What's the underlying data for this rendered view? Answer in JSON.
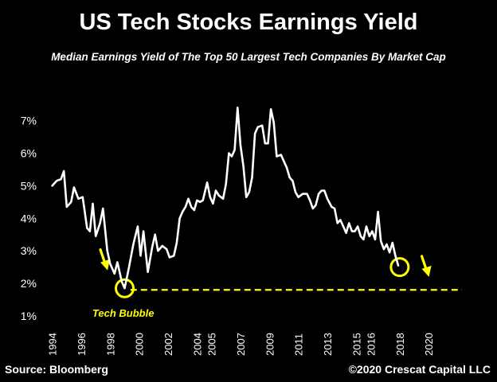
{
  "header": {
    "title": "US Tech Stocks Earnings Yield",
    "subtitle": "Median Earnings Yield of The Top 50 Largest Tech Companies By Market Cap"
  },
  "footer": {
    "source": "Source: Bloomberg",
    "copyright": "©2020 Crescat Capital LLC"
  },
  "colors": {
    "background": "#000000",
    "line": "#ffffff",
    "highlight": "#ffff00",
    "text": "#ffffff"
  },
  "chart_data": {
    "type": "line",
    "title": "US Tech Stocks Earnings Yield",
    "subtitle": "Median Earnings Yield of The Top 50 Largest Tech Companies By Market Cap",
    "xlabel": "",
    "ylabel": "",
    "ylim": [
      1,
      7.6
    ],
    "xlim": [
      1993.8,
      2023.4
    ],
    "y_ticks": [
      1,
      2,
      3,
      4,
      5,
      6,
      7
    ],
    "y_tick_labels": [
      "1%",
      "2%",
      "3%",
      "4%",
      "5%",
      "6%",
      "7%"
    ],
    "x_ticks": [
      1994,
      1996,
      1998,
      2000,
      2002,
      2004,
      2005,
      2007,
      2009,
      2011,
      2013,
      2015,
      2016,
      2018,
      2020
    ],
    "x_tick_labels": [
      "1994",
      "1996",
      "1998",
      "2000",
      "2002",
      "2004",
      "2005",
      "2007",
      "2009",
      "2011",
      "2013",
      "2015",
      "2016",
      "2018",
      "2020"
    ],
    "grid": false,
    "legend": "none",
    "series": [
      {
        "values_format": "[year, yield_percent]",
        "points": [
          [
            1994.0,
            5.0
          ],
          [
            1994.3,
            5.15
          ],
          [
            1994.6,
            5.2
          ],
          [
            1994.8,
            5.45
          ],
          [
            1995.0,
            4.35
          ],
          [
            1995.3,
            4.5
          ],
          [
            1995.5,
            4.95
          ],
          [
            1995.8,
            4.6
          ],
          [
            1996.1,
            4.65
          ],
          [
            1996.4,
            3.7
          ],
          [
            1996.6,
            3.6
          ],
          [
            1996.8,
            4.45
          ],
          [
            1997.0,
            3.45
          ],
          [
            1997.3,
            3.85
          ],
          [
            1997.5,
            4.3
          ],
          [
            1997.8,
            3.0
          ],
          [
            1998.0,
            2.6
          ],
          [
            1998.3,
            2.3
          ],
          [
            1998.5,
            2.65
          ],
          [
            1998.8,
            2.05
          ],
          [
            1999.0,
            1.85
          ],
          [
            1999.3,
            2.5
          ],
          [
            1999.6,
            3.2
          ],
          [
            1999.9,
            3.75
          ],
          [
            2000.1,
            2.85
          ],
          [
            2000.3,
            3.6
          ],
          [
            2000.6,
            2.35
          ],
          [
            2000.9,
            3.1
          ],
          [
            2001.1,
            3.5
          ],
          [
            2001.3,
            3.0
          ],
          [
            2001.6,
            3.15
          ],
          [
            2001.9,
            3.05
          ],
          [
            2002.1,
            2.8
          ],
          [
            2002.4,
            2.85
          ],
          [
            2002.6,
            3.25
          ],
          [
            2002.8,
            4.0
          ],
          [
            2003.0,
            4.2
          ],
          [
            2003.2,
            4.35
          ],
          [
            2003.4,
            4.6
          ],
          [
            2003.6,
            4.35
          ],
          [
            2003.8,
            4.25
          ],
          [
            2004.0,
            4.55
          ],
          [
            2004.2,
            4.5
          ],
          [
            2004.4,
            4.55
          ],
          [
            2004.7,
            5.1
          ],
          [
            2004.9,
            4.65
          ],
          [
            2005.1,
            4.45
          ],
          [
            2005.3,
            4.85
          ],
          [
            2005.5,
            4.7
          ],
          [
            2005.8,
            4.6
          ],
          [
            2006.0,
            5.05
          ],
          [
            2006.2,
            6.0
          ],
          [
            2006.4,
            5.9
          ],
          [
            2006.6,
            6.1
          ],
          [
            2006.8,
            7.4
          ],
          [
            2007.0,
            6.25
          ],
          [
            2007.2,
            5.6
          ],
          [
            2007.4,
            4.65
          ],
          [
            2007.6,
            4.8
          ],
          [
            2007.8,
            5.25
          ],
          [
            2008.0,
            6.6
          ],
          [
            2008.2,
            6.8
          ],
          [
            2008.5,
            6.85
          ],
          [
            2008.7,
            6.3
          ],
          [
            2008.9,
            6.3
          ],
          [
            2009.1,
            7.35
          ],
          [
            2009.3,
            6.95
          ],
          [
            2009.5,
            5.9
          ],
          [
            2009.8,
            5.95
          ],
          [
            2010.0,
            5.75
          ],
          [
            2010.2,
            5.55
          ],
          [
            2010.4,
            5.25
          ],
          [
            2010.6,
            5.15
          ],
          [
            2010.8,
            4.8
          ],
          [
            2011.0,
            4.65
          ],
          [
            2011.3,
            4.75
          ],
          [
            2011.6,
            4.75
          ],
          [
            2011.8,
            4.55
          ],
          [
            2012.0,
            4.3
          ],
          [
            2012.2,
            4.4
          ],
          [
            2012.4,
            4.75
          ],
          [
            2012.6,
            4.85
          ],
          [
            2012.8,
            4.85
          ],
          [
            2013.0,
            4.6
          ],
          [
            2013.3,
            4.35
          ],
          [
            2013.5,
            4.3
          ],
          [
            2013.7,
            3.85
          ],
          [
            2013.9,
            3.95
          ],
          [
            2014.1,
            3.75
          ],
          [
            2014.3,
            3.55
          ],
          [
            2014.5,
            3.85
          ],
          [
            2014.7,
            3.6
          ],
          [
            2014.9,
            3.6
          ],
          [
            2015.1,
            3.75
          ],
          [
            2015.3,
            3.45
          ],
          [
            2015.5,
            3.35
          ],
          [
            2015.7,
            3.75
          ],
          [
            2015.9,
            3.45
          ],
          [
            2016.1,
            3.6
          ],
          [
            2016.3,
            3.35
          ],
          [
            2016.5,
            4.2
          ],
          [
            2016.7,
            3.3
          ],
          [
            2016.9,
            3.05
          ],
          [
            2017.1,
            3.2
          ],
          [
            2017.3,
            2.95
          ],
          [
            2017.5,
            3.25
          ],
          [
            2017.7,
            2.85
          ],
          [
            2017.9,
            2.55
          ]
        ]
      }
    ],
    "annotations": [
      {
        "type": "circle",
        "x": 1999.0,
        "y": 1.85
      },
      {
        "type": "circle",
        "x": 2018.0,
        "y": 2.5
      },
      {
        "type": "arrow",
        "x": 1997.6,
        "y": 2.45
      },
      {
        "type": "arrow",
        "x": 2019.8,
        "y": 2.25
      },
      {
        "type": "hline",
        "y": 1.8,
        "x_from": 1999.4,
        "x_to": 2022.3
      },
      {
        "type": "text",
        "text": "Tech Bubble",
        "x": 1998.9,
        "y": 1.1
      }
    ]
  }
}
